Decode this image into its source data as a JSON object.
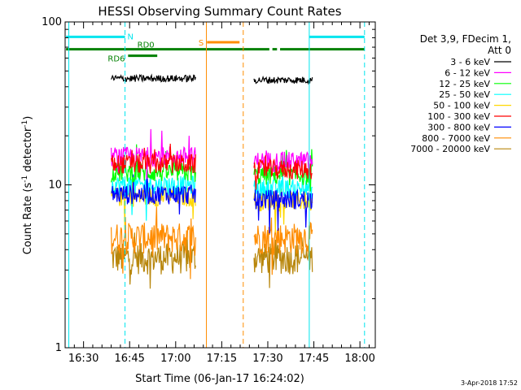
{
  "chart_data": {
    "type": "line",
    "title": "HESSI Observing Summary Count Rates",
    "xlabel": "Start Time (06-Jan-17 16:24:02)",
    "ylabel_main": "Count Rate (s",
    "ylabel_sup1": "-1",
    "ylabel_mid": " detector",
    "ylabel_sup2": "-1",
    "ylabel_end": ")",
    "y_scale": "log",
    "ylim": [
      1,
      100
    ],
    "y_ticks": [
      {
        "value": 1,
        "label": "1"
      },
      {
        "value": 10,
        "label": "10"
      },
      {
        "value": 100,
        "label": "100"
      }
    ],
    "x_unit": "minutes since 16:24:02",
    "xlim": [
      0,
      101
    ],
    "x_ticks": [
      {
        "value": 6,
        "label": "16:30"
      },
      {
        "value": 21,
        "label": "16:45"
      },
      {
        "value": 36,
        "label": "17:00"
      },
      {
        "value": 51,
        "label": "17:15"
      },
      {
        "value": 66,
        "label": "17:30"
      },
      {
        "value": 81,
        "label": "17:45"
      },
      {
        "value": 96,
        "label": "18:00"
      }
    ],
    "legend_header": [
      "Det 3,9, FDecim 1,",
      "Att 0"
    ],
    "legend": [
      {
        "label": "3 - 6 keV",
        "color": "#000000"
      },
      {
        "label": "6 - 12 keV",
        "color": "#ff00ff"
      },
      {
        "label": "12 - 25 keV",
        "color": "#00ff00"
      },
      {
        "label": "25 - 50 keV",
        "color": "#00ffff"
      },
      {
        "label": "50 - 100 keV",
        "color": "#ffd700"
      },
      {
        "label": "100 - 300 keV",
        "color": "#ff0000"
      },
      {
        "label": "300 - 800 keV",
        "color": "#0000ff"
      },
      {
        "label": "800 - 7000 keV",
        "color": "#ff8c00"
      },
      {
        "label": "7000 - 20000 keV",
        "color": "#b8860b"
      }
    ],
    "series": [
      {
        "name": "3 - 6 keV",
        "color": "#000000",
        "segments": [
          [
            15.0,
            42.5,
            45.0
          ],
          [
            61.5,
            80.5,
            44.0
          ]
        ]
      },
      {
        "name": "6 - 12 keV",
        "color": "#ff00ff",
        "segments": [
          [
            15.0,
            42.5,
            15.0
          ],
          [
            61.5,
            80.5,
            14.0
          ]
        ]
      },
      {
        "name": "12 - 25 keV",
        "color": "#00ff00",
        "segments": [
          [
            15.0,
            42.5,
            12.0
          ],
          [
            61.5,
            80.5,
            11.5
          ]
        ]
      },
      {
        "name": "25 - 50 keV",
        "color": "#00ffff",
        "segments": [
          [
            15.0,
            42.5,
            10.0
          ],
          [
            61.5,
            80.5,
            9.5
          ]
        ]
      },
      {
        "name": "50 - 100 keV",
        "color": "#ffd700",
        "segments": [
          [
            15.0,
            42.5,
            8.5
          ],
          [
            61.5,
            80.5,
            8.0
          ]
        ]
      },
      {
        "name": "100 - 300 keV",
        "color": "#ff0000",
        "segments": [
          [
            15.0,
            42.5,
            13.5
          ],
          [
            61.5,
            80.5,
            12.5
          ]
        ]
      },
      {
        "name": "300 - 800 keV",
        "color": "#0000ff",
        "segments": [
          [
            15.0,
            42.5,
            8.8
          ],
          [
            61.5,
            80.5,
            8.2
          ]
        ]
      },
      {
        "name": "800 - 7000 keV",
        "color": "#ff8c00",
        "segments": [
          [
            15.0,
            42.5,
            4.8
          ],
          [
            61.5,
            80.5,
            4.8
          ]
        ]
      },
      {
        "name": "7000 - 20000 keV",
        "color": "#b8860b",
        "segments": [
          [
            15.0,
            42.5,
            3.6
          ],
          [
            61.5,
            80.5,
            3.6
          ]
        ]
      }
    ],
    "vertical_lines": [
      {
        "x": 1.2,
        "color": "#00e5ee",
        "style": "solid"
      },
      {
        "x": 19.5,
        "color": "#00e5ee",
        "style": "dashed"
      },
      {
        "x": 79.5,
        "color": "#00e5ee",
        "style": "solid"
      },
      {
        "x": 97.5,
        "color": "#00e5ee",
        "style": "dashed"
      },
      {
        "x": 46.0,
        "color": "#ff8c00",
        "style": "solid"
      },
      {
        "x": 58.0,
        "color": "#ff8c00",
        "style": "dashed"
      }
    ],
    "state_bars": [
      {
        "label": "N",
        "color": "#00e5ee",
        "y": 81,
        "segments": [
          [
            0.3,
            19.5
          ],
          [
            79.5,
            97.5
          ]
        ]
      },
      {
        "label": "S",
        "color": "#ff8c00",
        "y": 75,
        "segments": [
          [
            46.2,
            56.8
          ]
        ]
      },
      {
        "label": "RD0",
        "color": "#008000",
        "y": 68,
        "segments": [
          [
            0.3,
            66.5
          ],
          [
            67.5,
            69.0
          ],
          [
            70.0,
            97.5
          ]
        ]
      },
      {
        "label": "RD6",
        "color": "#008000",
        "y": 62,
        "segments": [
          [
            20.5,
            30.0
          ]
        ]
      }
    ]
  },
  "footer": {
    "timestamp": "3-Apr-2018 17:52"
  }
}
